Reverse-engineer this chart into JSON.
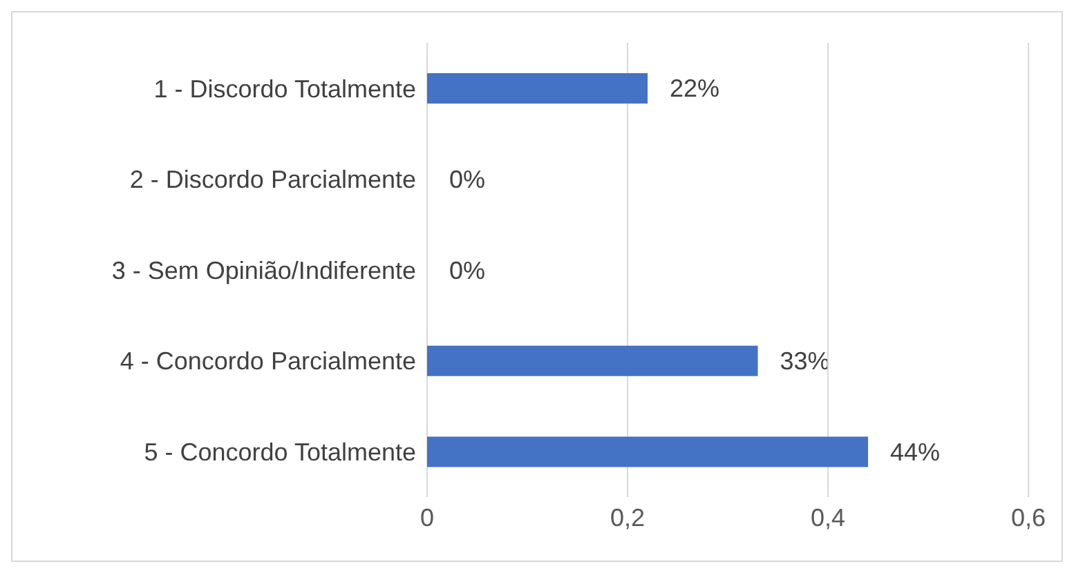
{
  "chart_data": {
    "type": "bar",
    "orientation": "horizontal",
    "categories": [
      "1 - Discordo Totalmente",
      "2 - Discordo Parcialmente",
      "3 - Sem Opinião/Indiferente",
      "4 - Concordo Parcialmente",
      "5 - Concordo Totalmente"
    ],
    "values": [
      0.22,
      0,
      0,
      0.33,
      0.44
    ],
    "value_labels": [
      "22%",
      "0%",
      "0%",
      "33%",
      "44%"
    ],
    "color": "#4472c4",
    "xlim": [
      0,
      0.6
    ],
    "xticks": [
      0,
      {
        "value": 0.2,
        "label": "0,2"
      },
      {
        "value": 0.4,
        "label": "0,4"
      },
      {
        "value": 0.6,
        "label": "0,6"
      }
    ],
    "grid": "x",
    "legend": false
  }
}
